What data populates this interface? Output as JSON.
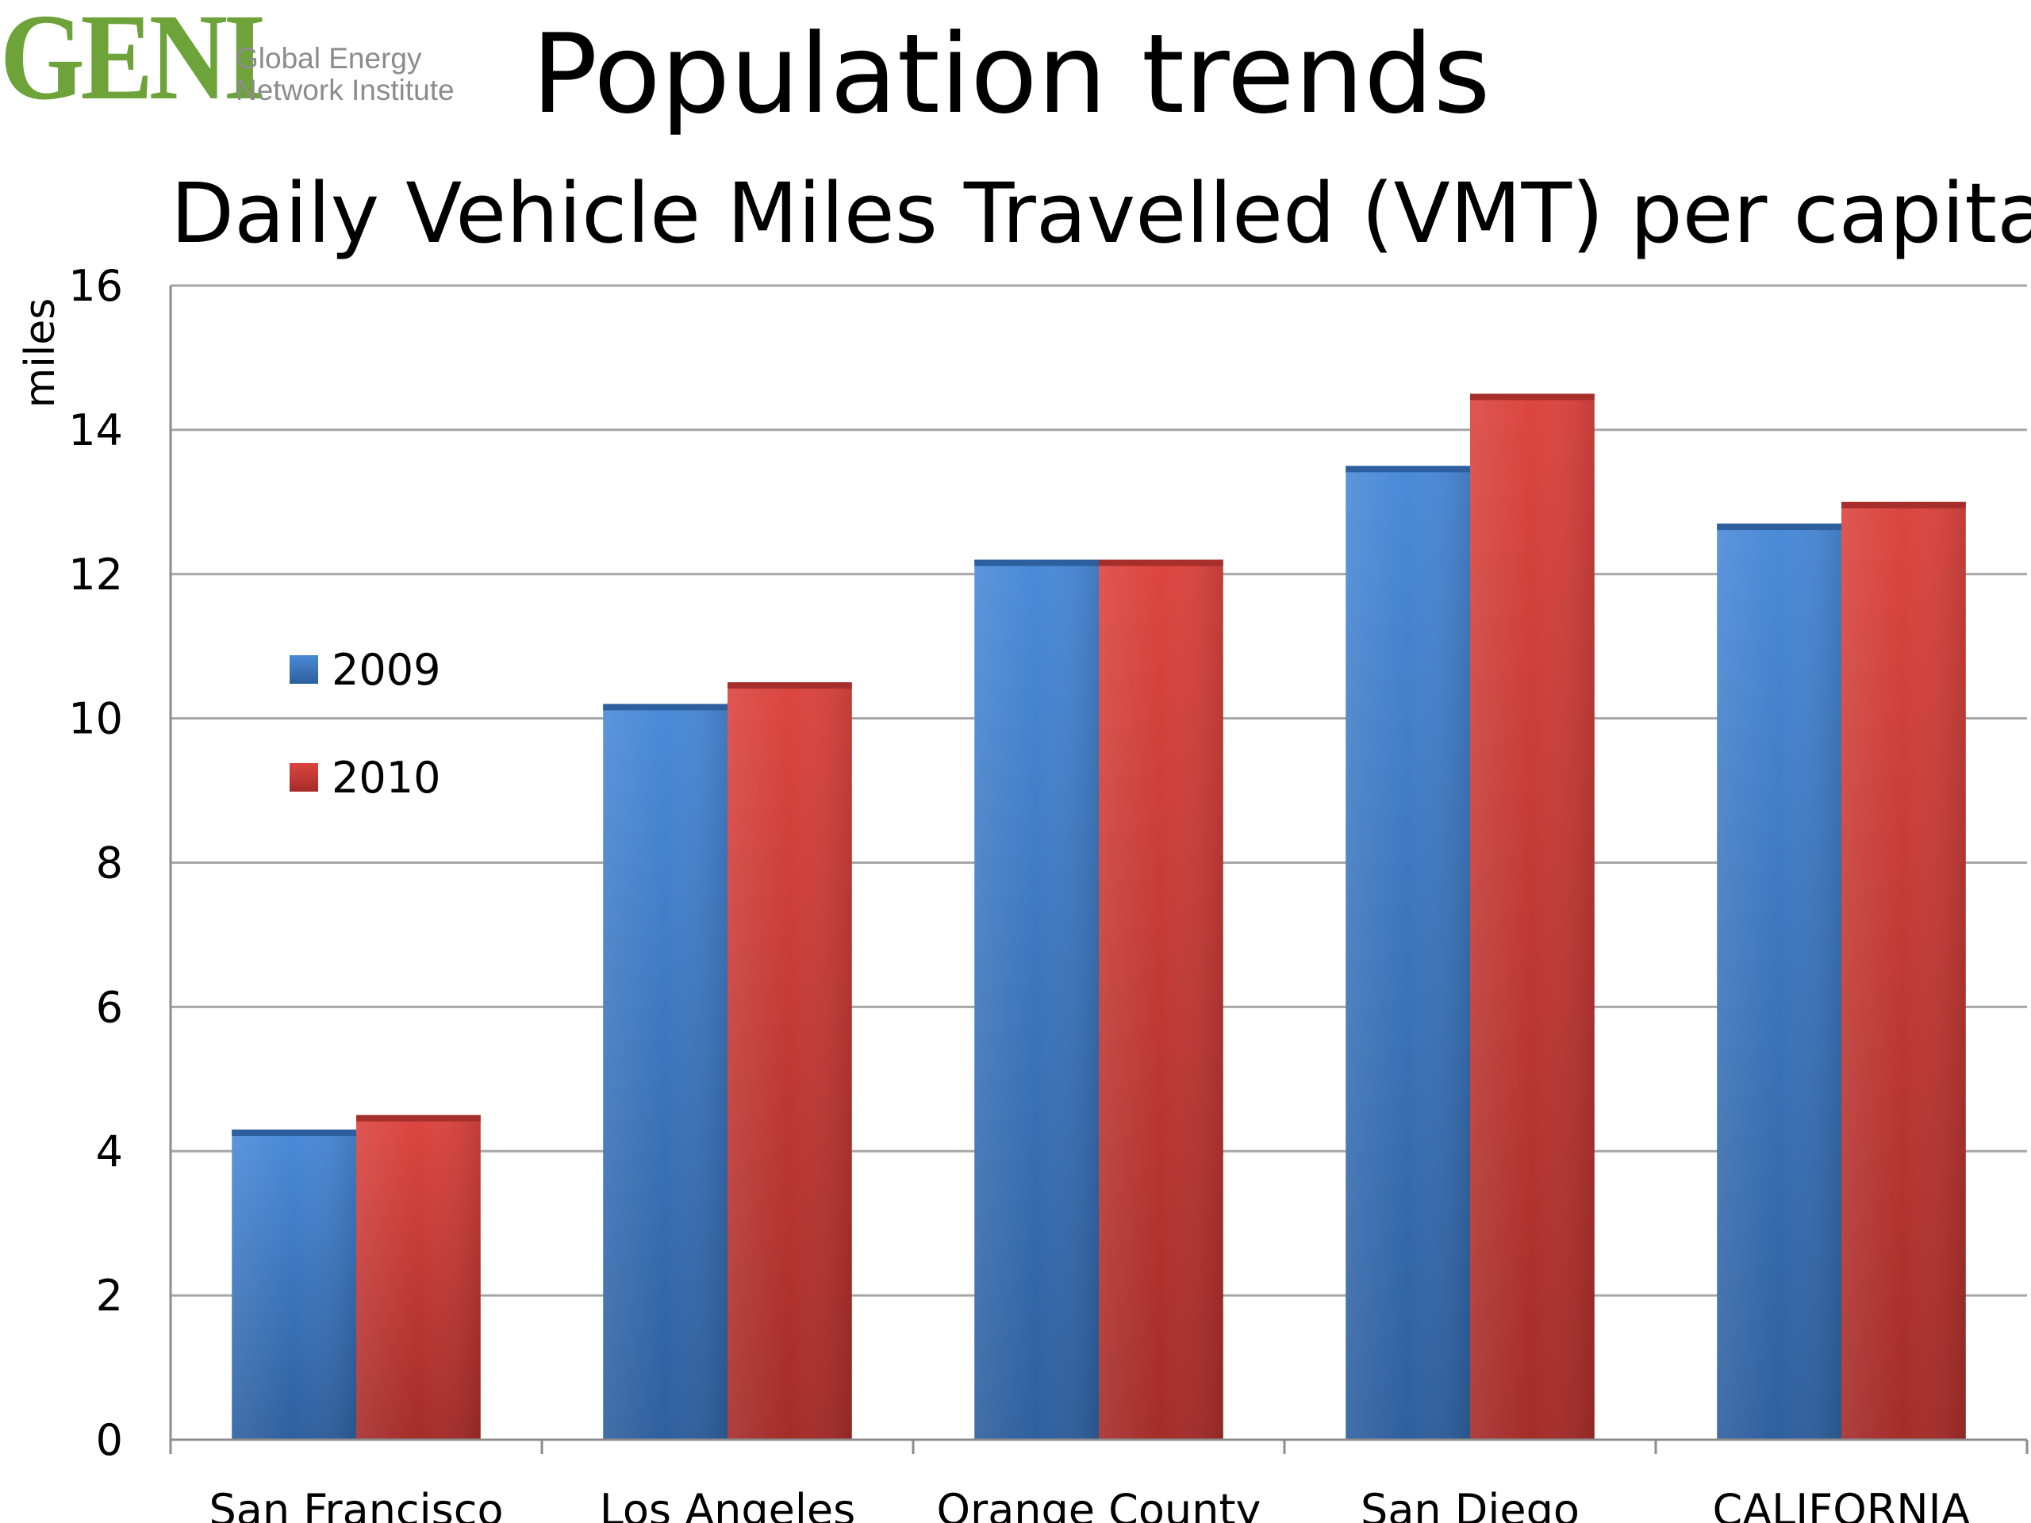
{
  "logo": {
    "mark": "GENI",
    "line1": "Global Energy",
    "line2": "Network Institute"
  },
  "page_title": "Population trends",
  "colors": {
    "series_2009": "#3b78c9",
    "series_2010": "#c93632",
    "logo_green": "#6ea33a",
    "grid": "#a6a6a6"
  },
  "chart_data": {
    "type": "bar",
    "title": "Daily Vehicle Miles Travelled (VMT) per capita",
    "xlabel": "",
    "ylabel": "miles",
    "ylim": [
      0,
      16
    ],
    "yticks": [
      0,
      2,
      4,
      6,
      8,
      10,
      12,
      14,
      16
    ],
    "grid": true,
    "legend_position": "left",
    "categories": [
      "San Francisco",
      "Los Angeles",
      "Orange County",
      "San Diego",
      "CALIFORNIA"
    ],
    "series": [
      {
        "name": "2009",
        "values": [
          4.3,
          10.2,
          12.2,
          13.5,
          12.7
        ]
      },
      {
        "name": "2010",
        "values": [
          4.5,
          10.5,
          12.2,
          14.5,
          13.0
        ]
      }
    ]
  }
}
